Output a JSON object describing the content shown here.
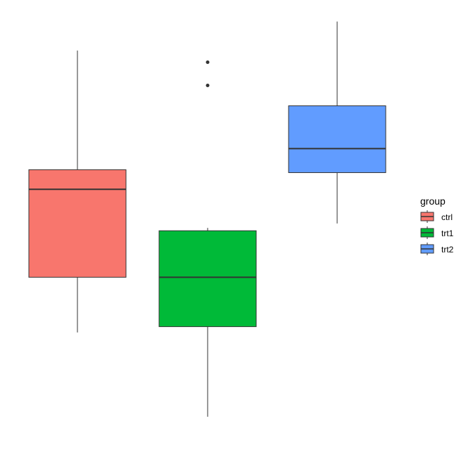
{
  "chart_data": {
    "type": "boxplot",
    "title": "",
    "xlabel": "",
    "ylabel": "",
    "axes_visible": false,
    "grid": false,
    "legend": {
      "title": "group",
      "placement": "right",
      "entries": [
        "ctrl",
        "trt1",
        "trt2"
      ]
    },
    "categories": [
      "ctrl",
      "trt1",
      "trt2"
    ],
    "ylim": [
      3.4,
      6.4
    ],
    "series": [
      {
        "name": "ctrl",
        "color": "#F8766D",
        "whisker_low": 4.17,
        "q1": 4.55,
        "median": 5.155,
        "q3": 5.29,
        "whisker_high": 6.11,
        "outliers": []
      },
      {
        "name": "trt1",
        "color": "#00BA38",
        "whisker_low": 3.59,
        "q1": 4.21,
        "median": 4.55,
        "q3": 4.87,
        "whisker_high": 4.89,
        "outliers": [
          5.87,
          6.03
        ]
      },
      {
        "name": "trt2",
        "color": "#619CFF",
        "whisker_low": 4.92,
        "q1": 5.27,
        "median": 5.435,
        "q3": 5.73,
        "whisker_high": 6.31,
        "outliers": []
      }
    ]
  }
}
